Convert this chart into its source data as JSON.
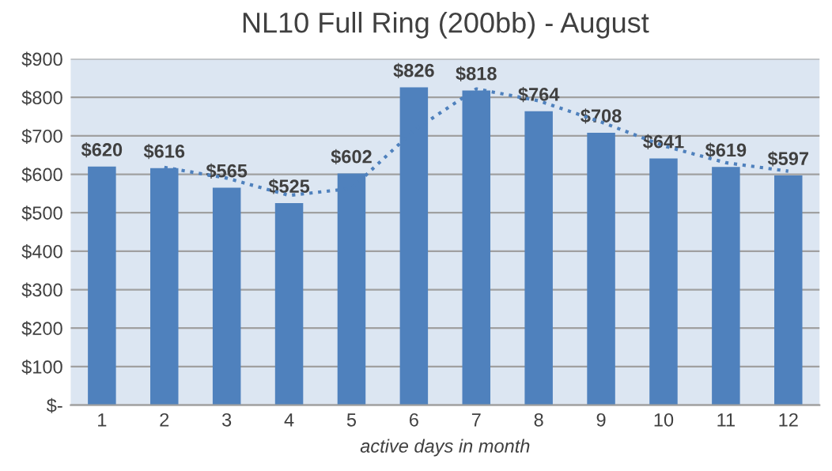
{
  "chart_data": {
    "type": "bar",
    "title": "NL10 Full Ring (200bb) - August",
    "xlabel": "active days in month",
    "categories": [
      "1",
      "2",
      "3",
      "4",
      "5",
      "6",
      "7",
      "8",
      "9",
      "10",
      "11",
      "12"
    ],
    "series": [
      {
        "color": "#4f81bd",
        "values": [
          620,
          616,
          565,
          525,
          602,
          826,
          818,
          764,
          708,
          641,
          619,
          597
        ],
        "value_labels": [
          "$620",
          "$616",
          "$565",
          "$525",
          "$602",
          "$826",
          "$818",
          "$764",
          "$708",
          "$641",
          "$619",
          "$597"
        ]
      },
      {
        "type": "line",
        "color": "#4f81bd",
        "line_style": "dotted",
        "marker": "none",
        "values": [
          null,
          618,
          590,
          545,
          563,
          714,
          822,
          791,
          736,
          674,
          630,
          608
        ]
      }
    ],
    "ylim": [
      0,
      900
    ],
    "yticks": [
      {
        "value": 0,
        "label": "$-"
      },
      {
        "value": 100,
        "label": "$100"
      },
      {
        "value": 200,
        "label": "$200"
      },
      {
        "value": 300,
        "label": "$300"
      },
      {
        "value": 400,
        "label": "$400"
      },
      {
        "value": 500,
        "label": "$500"
      },
      {
        "value": 600,
        "label": "$600"
      },
      {
        "value": 700,
        "label": "$700"
      },
      {
        "value": 800,
        "label": "$800"
      },
      {
        "value": 900,
        "label": "$900"
      }
    ],
    "grid": "y",
    "legend": false
  }
}
